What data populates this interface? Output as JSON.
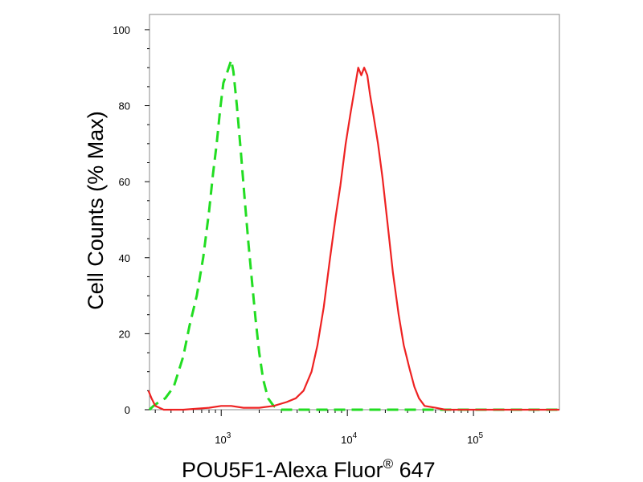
{
  "chart_data": {
    "type": "line",
    "title": "",
    "xlabel": "POU5F1-Alexa Fluor",
    "xlabel_superscript": "®",
    "xlabel_suffix": " 647",
    "ylabel": "Cell Counts (% Max)",
    "x_scale": "log",
    "xlim": [
      270,
      480000
    ],
    "ylim": [
      0,
      104
    ],
    "x_major_ticks": [
      {
        "value": 1000,
        "base": "10",
        "exp": "3"
      },
      {
        "value": 10000,
        "base": "10",
        "exp": "4"
      },
      {
        "value": 100000,
        "base": "10",
        "exp": "5"
      }
    ],
    "y_ticks": [
      0,
      20,
      40,
      60,
      80,
      100
    ],
    "grid": false,
    "legend": "none",
    "series": [
      {
        "color": "#22dd22",
        "dash": "dashed",
        "points": [
          [
            270,
            0
          ],
          [
            290,
            1
          ],
          [
            320,
            2
          ],
          [
            360,
            3
          ],
          [
            420,
            6
          ],
          [
            500,
            14
          ],
          [
            560,
            22
          ],
          [
            640,
            30
          ],
          [
            720,
            40
          ],
          [
            800,
            52
          ],
          [
            860,
            62
          ],
          [
            920,
            70
          ],
          [
            980,
            79
          ],
          [
            1040,
            86
          ],
          [
            1120,
            89
          ],
          [
            1200,
            92
          ],
          [
            1250,
            89
          ],
          [
            1330,
            80
          ],
          [
            1430,
            68
          ],
          [
            1530,
            56
          ],
          [
            1640,
            44
          ],
          [
            1750,
            34
          ],
          [
            1870,
            24
          ],
          [
            2000,
            15
          ],
          [
            2150,
            8
          ],
          [
            2350,
            3
          ],
          [
            2600,
            1
          ],
          [
            3000,
            0
          ],
          [
            480000,
            0
          ]
        ]
      },
      {
        "color": "#ee2222",
        "dash": "solid",
        "points": [
          [
            265,
            5
          ],
          [
            280,
            3
          ],
          [
            300,
            1
          ],
          [
            350,
            0
          ],
          [
            500,
            0
          ],
          [
            800,
            0.5
          ],
          [
            1000,
            1
          ],
          [
            1200,
            1
          ],
          [
            1500,
            0.5
          ],
          [
            2000,
            0.5
          ],
          [
            2600,
            1
          ],
          [
            3300,
            2
          ],
          [
            3900,
            3
          ],
          [
            4500,
            5
          ],
          [
            5200,
            10
          ],
          [
            5800,
            17
          ],
          [
            6500,
            27
          ],
          [
            7300,
            40
          ],
          [
            8100,
            51
          ],
          [
            8800,
            59
          ],
          [
            9700,
            70
          ],
          [
            10600,
            78
          ],
          [
            11500,
            85
          ],
          [
            12200,
            90
          ],
          [
            12900,
            88
          ],
          [
            13600,
            90
          ],
          [
            14400,
            88
          ],
          [
            15100,
            83
          ],
          [
            16200,
            77
          ],
          [
            17500,
            70
          ],
          [
            19000,
            61
          ],
          [
            21000,
            48
          ],
          [
            23000,
            36
          ],
          [
            25500,
            25
          ],
          [
            28000,
            17
          ],
          [
            31000,
            11
          ],
          [
            34000,
            6
          ],
          [
            37000,
            3
          ],
          [
            41000,
            1
          ],
          [
            50000,
            0.5
          ],
          [
            60000,
            0
          ],
          [
            480000,
            0
          ]
        ]
      }
    ]
  }
}
